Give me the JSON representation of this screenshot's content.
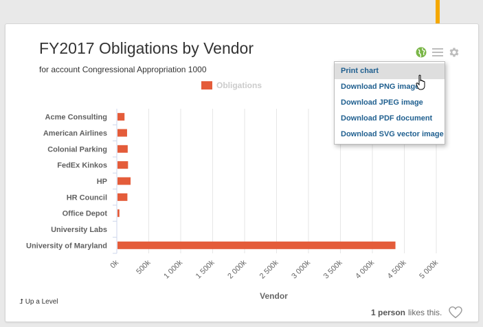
{
  "chart_data": {
    "type": "bar",
    "orientation": "horizontal",
    "title": "FY2017 Obligations by Vendor",
    "subtitle": "for account Congressional Appropriation 1000",
    "xlabel": "Vendor",
    "categories": [
      "Acme Consulting",
      "American Airlines",
      "Colonial Parking",
      "FedEx Kinkos",
      "HP",
      "HR Council",
      "Office Depot",
      "University Labs",
      "University of Maryland"
    ],
    "series": [
      {
        "name": "Obligations",
        "values": [
          110000,
          150000,
          160000,
          165000,
          205000,
          155000,
          30000,
          0,
          4350000
        ]
      }
    ],
    "value_ticks": [
      "0k",
      "500k",
      "1 000k",
      "1 500k",
      "2 000k",
      "2 500k",
      "3 000k",
      "3 500k",
      "4 000k",
      "4 500k",
      "5 000k"
    ],
    "xlim": [
      0,
      5000000
    ],
    "grid": true,
    "legend_position": "top-center",
    "colors": {
      "bar": "#e45c3a",
      "grid": "#e6e6e6",
      "legend_text": "#cccccc"
    }
  },
  "menu": {
    "items": [
      "Print chart",
      "Download PNG image",
      "Download JPEG image",
      "Download PDF document",
      "Download SVG vector image"
    ]
  },
  "footer": {
    "up_level": "Up a Level",
    "likes_count": "1 person",
    "likes_text": "likes this."
  },
  "icons": {
    "globe": "globe-icon",
    "menu": "hamburger-menu-icon",
    "settings": "gear-icon",
    "heart": "heart-icon",
    "arrow": "down-arrow-icon",
    "colors": {
      "globe": "#7ab648",
      "menu": "#bdbdbd",
      "gear": "#bdbdbd",
      "arrow": "#f5a800"
    }
  }
}
